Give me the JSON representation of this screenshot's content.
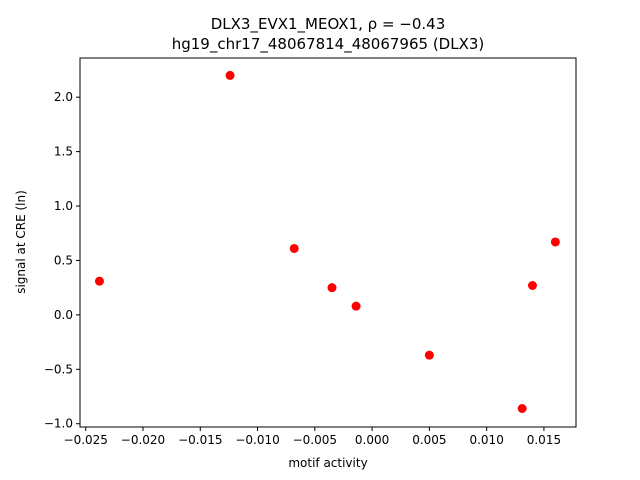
{
  "chart_data": {
    "type": "scatter",
    "title_line1": "DLX3_EVX1_MEOX1, ρ = −0.43",
    "title_line2": "hg19_chr17_48067814_48067965 (DLX3)",
    "xlabel": "motif activity",
    "ylabel": "signal at CRE (ln)",
    "xlim": [
      -0.0255,
      0.0178
    ],
    "ylim": [
      -1.03,
      2.36
    ],
    "x_ticks": [
      -0.025,
      -0.02,
      -0.015,
      -0.01,
      -0.005,
      0.0,
      0.005,
      0.01,
      0.015
    ],
    "x_tick_labels": [
      "−0.025",
      "−0.020",
      "−0.015",
      "−0.010",
      "−0.005",
      "0.000",
      "0.005",
      "0.010",
      "0.015"
    ],
    "y_ticks": [
      -1.0,
      -0.5,
      0.0,
      0.5,
      1.0,
      1.5,
      2.0
    ],
    "y_tick_labels": [
      "−1.0",
      "−0.5",
      "0.0",
      "0.5",
      "1.0",
      "1.5",
      "2.0"
    ],
    "grid": false,
    "marker_color": "#ff0000",
    "points": [
      {
        "x": -0.0238,
        "y": 0.31
      },
      {
        "x": -0.0124,
        "y": 2.2
      },
      {
        "x": -0.0068,
        "y": 0.61
      },
      {
        "x": -0.0035,
        "y": 0.25
      },
      {
        "x": -0.0014,
        "y": 0.08
      },
      {
        "x": 0.005,
        "y": -0.37
      },
      {
        "x": 0.0131,
        "y": -0.86
      },
      {
        "x": 0.014,
        "y": 0.27
      },
      {
        "x": 0.016,
        "y": 0.67
      }
    ]
  }
}
